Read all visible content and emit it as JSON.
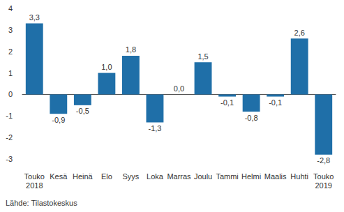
{
  "chart_data": {
    "type": "bar",
    "categories": [
      "Touko\n2018",
      "Kesä",
      "Heinä",
      "Elo",
      "Syys",
      "Loka",
      "Marras",
      "Joulu",
      "Tammi",
      "Helmi",
      "Maalis",
      "Huhti",
      "Touko\n2019"
    ],
    "values": [
      3.3,
      -0.9,
      -0.5,
      1.0,
      1.8,
      -1.3,
      0.0,
      1.5,
      -0.1,
      -0.8,
      -0.1,
      2.6,
      -2.8
    ],
    "value_labels": [
      "3,3",
      "-0,9",
      "-0,5",
      "1,0",
      "1,8",
      "-1,3",
      "0,0",
      "1,5",
      "-0,1",
      "-0,8",
      "-0,1",
      "2,6",
      "-2,8"
    ],
    "data_labels": true,
    "color": "#1f6fa8",
    "ylim": [
      -3,
      4
    ],
    "yticks": [
      -3,
      -2,
      -1,
      0,
      1,
      2,
      3,
      4
    ],
    "grid": false,
    "source": "Lähde: Tilastokeskus"
  }
}
